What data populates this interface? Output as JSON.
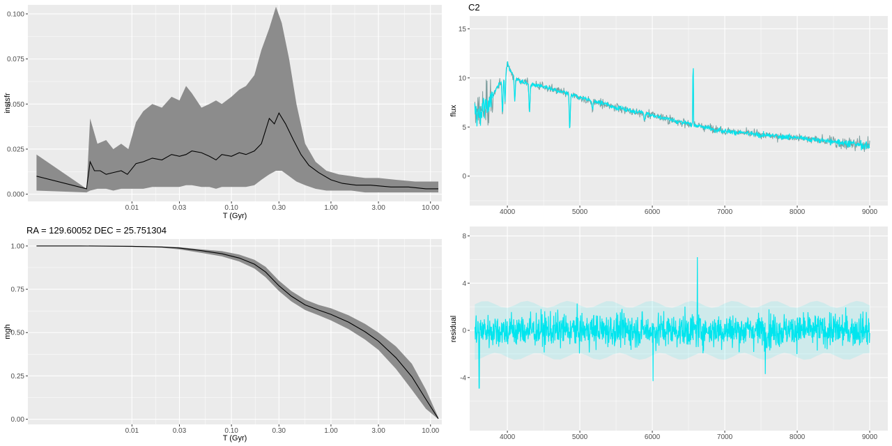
{
  "colors": {
    "panel_bg": "#ebebeb",
    "grid_major": "#ffffff",
    "ribbon": "#8c8c8c",
    "median_line": "#000000",
    "model_spectrum": "#00e5ee",
    "observed_spectrum": "#7f9f9f"
  },
  "chart_data": [
    {
      "id": "sfh",
      "type": "area",
      "title": "",
      "xlabel": "T (Gyr)",
      "ylabel": "instsfr",
      "xscale": "log",
      "xlim": [
        0.0009,
        13
      ],
      "ylim": [
        -0.004,
        0.105
      ],
      "x_ticks": [
        0.01,
        0.03,
        0.1,
        0.3,
        1.0,
        3.0,
        10.0
      ],
      "x_tick_labels": [
        "0.01",
        "0.03",
        "0.10",
        "0.30",
        "1.00",
        "3.00",
        "10.00"
      ],
      "y_ticks": [
        0,
        0.025,
        0.05,
        0.075,
        0.1
      ],
      "y_tick_labels": [
        "0.000",
        "0.025",
        "0.050",
        "0.075",
        "0.100"
      ],
      "grid": true,
      "series": [
        {
          "role": "band",
          "x": [
            0.0011,
            0.0035,
            0.0038,
            0.0045,
            0.0055,
            0.0065,
            0.0078,
            0.0092,
            0.011,
            0.013,
            0.016,
            0.02,
            0.025,
            0.03,
            0.035,
            0.04,
            0.05,
            0.06,
            0.07,
            0.08,
            0.1,
            0.12,
            0.14,
            0.17,
            0.2,
            0.24,
            0.28,
            0.32,
            0.38,
            0.45,
            0.55,
            0.7,
            0.9,
            1.2,
            1.6,
            2.2,
            3.0,
            4.5,
            7.0,
            12.0
          ],
          "lower": [
            0.002,
            0.001,
            0.002,
            0.003,
            0.003,
            0.002,
            0.003,
            0.003,
            0.003,
            0.003,
            0.004,
            0.004,
            0.004,
            0.004,
            0.005,
            0.005,
            0.004,
            0.004,
            0.003,
            0.004,
            0.004,
            0.004,
            0.004,
            0.005,
            0.008,
            0.011,
            0.013,
            0.013,
            0.01,
            0.007,
            0.005,
            0.003,
            0.002,
            0.002,
            0.002,
            0.001,
            0.001,
            0.001,
            0.001,
            0.001
          ],
          "upper": [
            0.022,
            0.003,
            0.042,
            0.028,
            0.03,
            0.025,
            0.028,
            0.025,
            0.04,
            0.046,
            0.05,
            0.048,
            0.054,
            0.052,
            0.06,
            0.056,
            0.048,
            0.05,
            0.052,
            0.05,
            0.054,
            0.058,
            0.06,
            0.066,
            0.08,
            0.092,
            0.104,
            0.095,
            0.075,
            0.05,
            0.028,
            0.018,
            0.013,
            0.011,
            0.01,
            0.009,
            0.009,
            0.008,
            0.007,
            0.007
          ]
        },
        {
          "role": "median",
          "x": [
            0.0011,
            0.0035,
            0.0038,
            0.0042,
            0.0048,
            0.0055,
            0.0065,
            0.0078,
            0.009,
            0.011,
            0.013,
            0.016,
            0.02,
            0.025,
            0.03,
            0.035,
            0.04,
            0.05,
            0.06,
            0.07,
            0.08,
            0.1,
            0.12,
            0.14,
            0.17,
            0.2,
            0.24,
            0.27,
            0.3,
            0.35,
            0.42,
            0.5,
            0.6,
            0.75,
            1.0,
            1.3,
            1.8,
            2.5,
            4.0,
            6.0,
            9.0,
            12.0
          ],
          "y": [
            0.01,
            0.003,
            0.018,
            0.013,
            0.013,
            0.011,
            0.012,
            0.013,
            0.011,
            0.017,
            0.018,
            0.02,
            0.019,
            0.022,
            0.021,
            0.022,
            0.024,
            0.023,
            0.021,
            0.019,
            0.022,
            0.021,
            0.023,
            0.022,
            0.024,
            0.028,
            0.042,
            0.039,
            0.045,
            0.039,
            0.03,
            0.022,
            0.016,
            0.012,
            0.008,
            0.006,
            0.005,
            0.005,
            0.004,
            0.004,
            0.003,
            0.003
          ]
        }
      ]
    },
    {
      "id": "mgh",
      "type": "area",
      "title": "RA = 129.60052  DEC = 25.751304",
      "xlabel": "T (Gyr)",
      "ylabel": "mgh",
      "xscale": "log",
      "xlim": [
        0.0009,
        13
      ],
      "ylim": [
        -0.03,
        1.04
      ],
      "x_ticks": [
        0.01,
        0.03,
        0.1,
        0.3,
        1.0,
        3.0,
        10.0
      ],
      "x_tick_labels": [
        "0.01",
        "0.03",
        "0.10",
        "0.30",
        "1.00",
        "3.00",
        "10.00"
      ],
      "y_ticks": [
        0,
        0.25,
        0.5,
        0.75,
        1.0
      ],
      "y_tick_labels": [
        "0.00",
        "0.25",
        "0.50",
        "0.75",
        "1.00"
      ],
      "grid": true,
      "series": [
        {
          "role": "band",
          "x": [
            0.0011,
            0.003,
            0.01,
            0.02,
            0.03,
            0.05,
            0.08,
            0.12,
            0.17,
            0.22,
            0.3,
            0.4,
            0.55,
            0.75,
            1.0,
            1.5,
            2.2,
            3.0,
            4.5,
            6.5,
            9.0,
            12.0
          ],
          "lower": [
            1.0,
            1.0,
            0.995,
            0.99,
            0.98,
            0.96,
            0.94,
            0.91,
            0.87,
            0.82,
            0.74,
            0.68,
            0.63,
            0.6,
            0.57,
            0.52,
            0.46,
            0.4,
            0.29,
            0.17,
            0.06,
            0.0
          ],
          "upper": [
            1.0,
            1.0,
            1.0,
            0.997,
            0.993,
            0.98,
            0.97,
            0.95,
            0.92,
            0.88,
            0.8,
            0.74,
            0.69,
            0.66,
            0.64,
            0.6,
            0.55,
            0.5,
            0.42,
            0.32,
            0.17,
            0.01
          ]
        },
        {
          "role": "median",
          "x": [
            0.0011,
            0.003,
            0.01,
            0.02,
            0.03,
            0.05,
            0.08,
            0.12,
            0.17,
            0.22,
            0.3,
            0.4,
            0.55,
            0.75,
            1.0,
            1.5,
            2.2,
            3.0,
            4.5,
            6.5,
            9.0,
            12.0
          ],
          "y": [
            1.0,
            1.0,
            0.998,
            0.994,
            0.988,
            0.973,
            0.955,
            0.93,
            0.895,
            0.85,
            0.77,
            0.71,
            0.66,
            0.63,
            0.605,
            0.56,
            0.505,
            0.45,
            0.355,
            0.245,
            0.115,
            0.003
          ]
        }
      ]
    },
    {
      "id": "spectrum",
      "type": "line",
      "title": "C2",
      "xlabel": "",
      "ylabel": "flux",
      "xlim": [
        3480,
        9250
      ],
      "ylim": [
        -3,
        16.3
      ],
      "x_ticks": [
        4000,
        5000,
        6000,
        7000,
        8000,
        9000
      ],
      "x_tick_labels": [
        "4000",
        "5000",
        "6000",
        "7000",
        "8000",
        "9000"
      ],
      "y_ticks": [
        0,
        5,
        10,
        15
      ],
      "y_tick_labels": [
        "0",
        "5",
        "10",
        "15"
      ],
      "grid": true,
      "wavelength_range": [
        3550,
        9000
      ],
      "continuum": {
        "x": [
          3550,
          3600,
          3700,
          3800,
          3900,
          3950,
          4000,
          4050,
          4100,
          4200,
          4300,
          4500,
          5000,
          5500,
          6000,
          6500,
          7000,
          7500,
          8000,
          8500,
          9000
        ],
        "y": [
          6.5,
          6.3,
          7.0,
          8.2,
          9.5,
          10.2,
          11.4,
          10.6,
          10.1,
          9.6,
          9.4,
          9.1,
          8.0,
          7.0,
          6.2,
          5.3,
          4.6,
          4.2,
          3.9,
          3.5,
          3.1
        ]
      },
      "absorption_features": [
        {
          "wavelength": 3933,
          "depth": 3.5
        },
        {
          "wavelength": 3968,
          "depth": 3.0
        },
        {
          "wavelength": 4102,
          "depth": 2.5
        },
        {
          "wavelength": 4305,
          "depth": 3.0
        },
        {
          "wavelength": 4861,
          "depth": 3.5
        },
        {
          "wavelength": 5175,
          "depth": 1.0
        },
        {
          "wavelength": 5893,
          "depth": 0.8
        }
      ],
      "emission_features": [
        {
          "wavelength": 6563,
          "height": 7.5
        }
      ]
    },
    {
      "id": "residual",
      "type": "line",
      "title": "",
      "xlabel": "",
      "ylabel": "residual",
      "xlim": [
        3480,
        9250
      ],
      "ylim": [
        -8.5,
        8.8
      ],
      "x_ticks": [
        4000,
        5000,
        6000,
        7000,
        8000,
        9000
      ],
      "x_tick_labels": [
        "4000",
        "5000",
        "6000",
        "7000",
        "8000",
        "9000"
      ],
      "y_ticks": [
        -4,
        0,
        4,
        8
      ],
      "y_tick_labels": [
        "-4",
        "0",
        "4",
        "8"
      ],
      "grid": true,
      "wavelength_range": [
        3550,
        9000
      ],
      "baseline": 0,
      "typical_scatter": 1.0,
      "spikes": [
        {
          "wavelength": 3610,
          "value": -4.9
        },
        {
          "wavelength": 6010,
          "value": -4.3
        },
        {
          "wavelength": 6620,
          "value": 6.2
        },
        {
          "wavelength": 7560,
          "value": -3.7
        }
      ]
    }
  ]
}
